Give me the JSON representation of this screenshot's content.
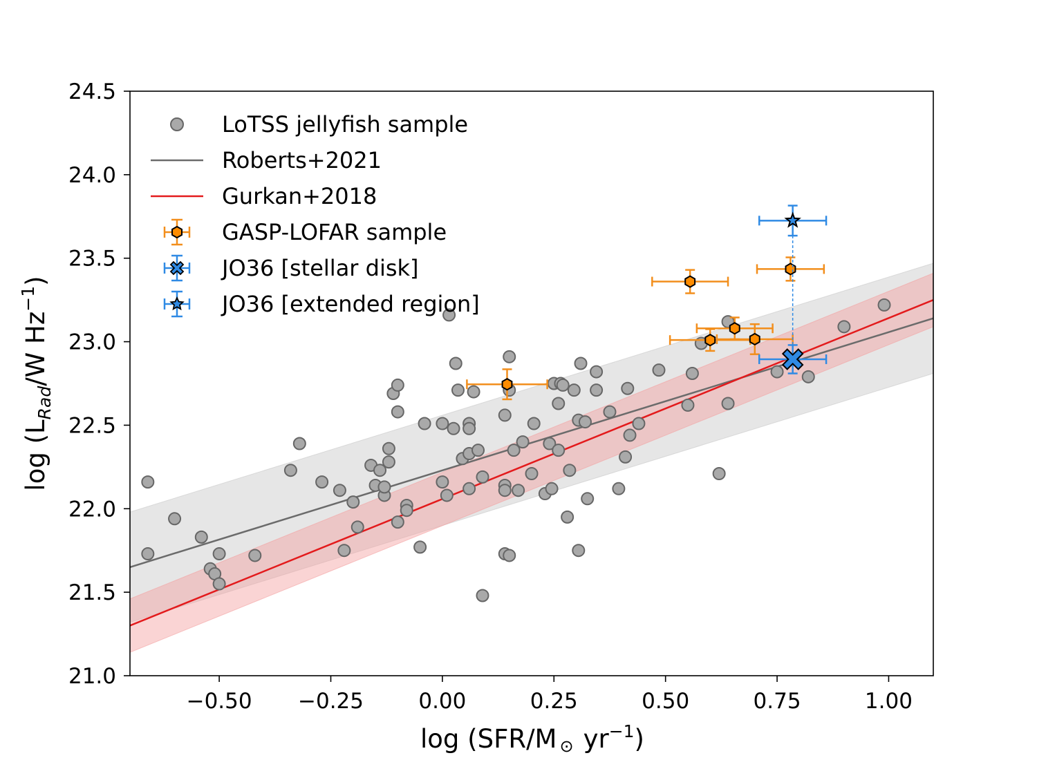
{
  "chart_data": {
    "type": "scatter",
    "xlabel_main": "log (SFR/M",
    "xlabel_sun": "⊙",
    "xlabel_unit": "yr",
    "xlabel_exp": "−1",
    "xlabel_close": ")",
    "ylabel_main": "log (L",
    "ylabel_sub": "Rad",
    "ylabel_unit": "/W Hz",
    "ylabel_exp": "−1",
    "ylabel_close": ")",
    "xlim": [
      -0.7,
      1.1
    ],
    "ylim": [
      21.0,
      24.5
    ],
    "xticks": [
      -0.5,
      -0.25,
      0.0,
      0.25,
      0.5,
      0.75,
      1.0
    ],
    "xtick_labels": [
      "−0.50",
      "−0.25",
      "0.00",
      "0.25",
      "0.50",
      "0.75",
      "1.00"
    ],
    "yticks": [
      21.0,
      21.5,
      22.0,
      22.5,
      23.0,
      23.5,
      24.0,
      24.5
    ],
    "ytick_labels": [
      "21.0",
      "21.5",
      "22.0",
      "22.5",
      "23.0",
      "23.5",
      "24.0",
      "24.5"
    ],
    "legend": {
      "position": "top-left",
      "entries": [
        "LoTSS jellyfish sample",
        "Roberts+2021",
        "Gurkan+2018",
        "GASP-LOFAR sample",
        "JO36 [stellar disk]",
        "JO36 [extended region]"
      ]
    },
    "colors": {
      "lotss": "#a9a9a9",
      "roberts": "#6b6b6b",
      "roberts_band": "#c8c8c8",
      "gurkan": "#e31a1c",
      "gurkan_band": "#f4a0a0",
      "gasp": "#ff8c00",
      "gasp_err": "#f28e1c",
      "jo36": "#2f8ae4"
    },
    "roberts_fit": {
      "x": [
        -0.7,
        1.1
      ],
      "y": [
        21.65,
        23.14
      ],
      "band_lower": [
        21.32,
        22.81
      ],
      "band_upper": [
        21.98,
        23.47
      ]
    },
    "gurkan_fit": {
      "x": [
        -0.7,
        1.1
      ],
      "y": [
        21.3,
        23.25
      ],
      "band_lower": [
        21.14,
        23.09
      ],
      "band_upper": [
        21.46,
        23.41
      ]
    },
    "lotss_sample": [
      [
        -0.66,
        22.16
      ],
      [
        -0.66,
        21.73
      ],
      [
        -0.6,
        21.94
      ],
      [
        -0.54,
        21.83
      ],
      [
        -0.52,
        21.64
      ],
      [
        -0.51,
        21.61
      ],
      [
        -0.5,
        21.73
      ],
      [
        -0.5,
        21.55
      ],
      [
        -0.42,
        21.72
      ],
      [
        -0.34,
        22.23
      ],
      [
        -0.32,
        22.39
      ],
      [
        -0.27,
        22.16
      ],
      [
        -0.23,
        22.11
      ],
      [
        -0.22,
        21.75
      ],
      [
        -0.2,
        22.04
      ],
      [
        -0.19,
        21.89
      ],
      [
        -0.16,
        22.26
      ],
      [
        -0.15,
        22.14
      ],
      [
        -0.14,
        22.23
      ],
      [
        -0.13,
        22.08
      ],
      [
        -0.13,
        22.13
      ],
      [
        -0.12,
        22.36
      ],
      [
        -0.12,
        22.28
      ],
      [
        -0.11,
        22.69
      ],
      [
        -0.1,
        22.74
      ],
      [
        -0.1,
        22.58
      ],
      [
        -0.1,
        21.92
      ],
      [
        -0.08,
        22.02
      ],
      [
        -0.08,
        21.99
      ],
      [
        -0.05,
        21.77
      ],
      [
        -0.04,
        22.51
      ],
      [
        0.0,
        22.51
      ],
      [
        0.0,
        22.16
      ],
      [
        0.01,
        22.08
      ],
      [
        0.015,
        23.16
      ],
      [
        0.025,
        22.48
      ],
      [
        0.03,
        22.87
      ],
      [
        0.035,
        22.71
      ],
      [
        0.045,
        22.3
      ],
      [
        0.06,
        22.51
      ],
      [
        0.06,
        22.48
      ],
      [
        0.06,
        22.33
      ],
      [
        0.06,
        22.12
      ],
      [
        0.07,
        22.7
      ],
      [
        0.08,
        22.35
      ],
      [
        0.09,
        22.19
      ],
      [
        0.09,
        21.48
      ],
      [
        0.14,
        22.56
      ],
      [
        0.14,
        22.14
      ],
      [
        0.14,
        22.11
      ],
      [
        0.14,
        21.73
      ],
      [
        0.15,
        21.72
      ],
      [
        0.15,
        22.91
      ],
      [
        0.15,
        22.71
      ],
      [
        0.16,
        22.35
      ],
      [
        0.17,
        22.11
      ],
      [
        0.18,
        22.4
      ],
      [
        0.2,
        22.21
      ],
      [
        0.205,
        22.51
      ],
      [
        0.23,
        22.09
      ],
      [
        0.24,
        22.39
      ],
      [
        0.245,
        22.12
      ],
      [
        0.25,
        22.75
      ],
      [
        0.26,
        22.63
      ],
      [
        0.26,
        22.35
      ],
      [
        0.265,
        22.75
      ],
      [
        0.27,
        22.74
      ],
      [
        0.28,
        21.95
      ],
      [
        0.285,
        22.23
      ],
      [
        0.295,
        22.71
      ],
      [
        0.305,
        22.53
      ],
      [
        0.305,
        21.75
      ],
      [
        0.31,
        22.87
      ],
      [
        0.32,
        22.52
      ],
      [
        0.325,
        22.06
      ],
      [
        0.345,
        22.71
      ],
      [
        0.345,
        22.82
      ],
      [
        0.375,
        22.58
      ],
      [
        0.395,
        22.12
      ],
      [
        0.41,
        22.31
      ],
      [
        0.415,
        22.72
      ],
      [
        0.42,
        22.44
      ],
      [
        0.44,
        22.51
      ],
      [
        0.485,
        22.83
      ],
      [
        0.55,
        22.62
      ],
      [
        0.56,
        22.81
      ],
      [
        0.58,
        22.99
      ],
      [
        0.62,
        22.21
      ],
      [
        0.64,
        22.63
      ],
      [
        0.64,
        23.12
      ],
      [
        0.75,
        22.82
      ],
      [
        0.82,
        22.79
      ],
      [
        0.9,
        23.09
      ],
      [
        0.99,
        23.22
      ]
    ],
    "gasp_lofar_sample": [
      {
        "x": 0.145,
        "y": 22.745,
        "xerr": 0.09,
        "yerr": 0.09
      },
      {
        "x": 0.555,
        "y": 23.36,
        "xerr": 0.085,
        "yerr": 0.07
      },
      {
        "x": 0.6,
        "y": 23.01,
        "xerr": 0.09,
        "yerr": 0.065
      },
      {
        "x": 0.655,
        "y": 23.08,
        "xerr": 0.085,
        "yerr": 0.065
      },
      {
        "x": 0.7,
        "y": 23.015,
        "xerr": 0.085,
        "yerr": 0.09
      },
      {
        "x": 0.78,
        "y": 23.435,
        "xerr": 0.075,
        "yerr": 0.07
      }
    ],
    "jo36_stellar_disk": {
      "x": 0.785,
      "y": 22.895,
      "xerr": 0.075,
      "yerr": 0.085
    },
    "jo36_extended_region": {
      "x": 0.785,
      "y": 23.725,
      "xerr": 0.075,
      "yerr": 0.09
    }
  }
}
